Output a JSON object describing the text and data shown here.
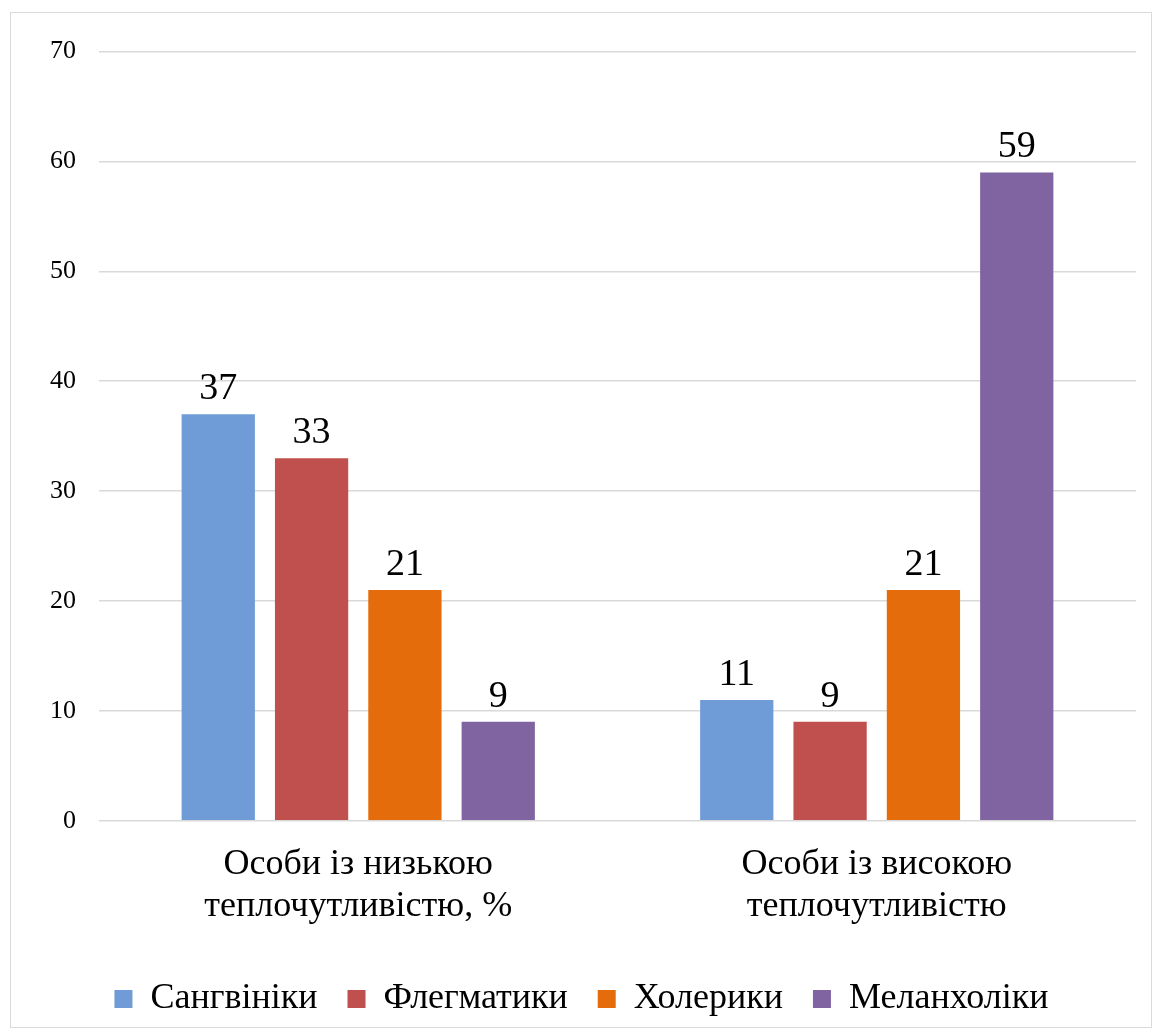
{
  "chart_data": {
    "type": "bar",
    "categories": [
      "Особи із низькою теплочутливістю, %",
      "Особи із високою теплочутливістю"
    ],
    "series": [
      {
        "name": "Сангвініки",
        "color": "#6f9bd6",
        "values": [
          37,
          11
        ]
      },
      {
        "name": "Флегматики",
        "color": "#c0504d",
        "values": [
          33,
          9
        ]
      },
      {
        "name": "Холерики",
        "color": "#e46c0a",
        "values": [
          21,
          21
        ]
      },
      {
        "name": "Меланхоліки",
        "color": "#8064a2",
        "values": [
          9,
          59
        ]
      }
    ],
    "ylim": [
      0,
      70
    ],
    "yticks": [
      0,
      10,
      20,
      30,
      40,
      50,
      60,
      70
    ],
    "grid": "y",
    "legend": "bottom",
    "data_labels": true
  }
}
